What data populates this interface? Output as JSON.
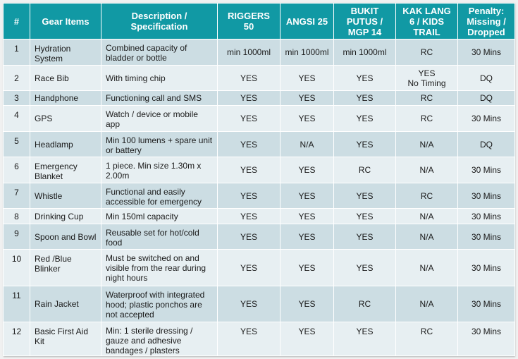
{
  "table": {
    "headers": [
      "#",
      "Gear Items",
      "Description / Specification",
      "RIGGERS 50",
      "ANGSI 25",
      "BUKIT PUTUS / MGP 14",
      "KAK LANG 6 / KIDS TRAIL",
      "Penalty: Missing / Dropped"
    ],
    "rows": [
      {
        "num": "1",
        "item": "Hydration System",
        "desc": "Combined capacity of bladder or bottle",
        "riggers": "min 1000ml",
        "angsi": "min 1000ml",
        "bukit": "min 1000ml",
        "kaklang": "RC",
        "kaklang2": "",
        "penalty": "30 Mins"
      },
      {
        "num": "2",
        "item": "Race Bib",
        "desc": "With timing chip",
        "riggers": "YES",
        "angsi": "YES",
        "bukit": "YES",
        "kaklang": "YES",
        "kaklang2": "No Timing",
        "penalty": "DQ"
      },
      {
        "num": "3",
        "item": "Handphone",
        "desc": "Functioning call and SMS",
        "riggers": "YES",
        "angsi": "YES",
        "bukit": "YES",
        "kaklang": "RC",
        "kaklang2": "",
        "penalty": "DQ"
      },
      {
        "num": "4",
        "item": "GPS",
        "desc": "Watch / device or mobile app",
        "riggers": "YES",
        "angsi": "YES",
        "bukit": "YES",
        "kaklang": "RC",
        "kaklang2": "",
        "penalty": "30 Mins"
      },
      {
        "num": "5",
        "item": "Headlamp",
        "desc": "Min 100 lumens + spare unit or battery",
        "riggers": "YES",
        "angsi": "N/A",
        "bukit": "YES",
        "kaklang": "N/A",
        "kaklang2": "",
        "penalty": "DQ"
      },
      {
        "num": "6",
        "item": "Emergency Blanket",
        "desc": "1 piece. Min size 1.30m x 2.00m",
        "riggers": "YES",
        "angsi": "YES",
        "bukit": "RC",
        "kaklang": "N/A",
        "kaklang2": "",
        "penalty": "30 Mins"
      },
      {
        "num": "7",
        "item": "Whistle",
        "desc": "Functional and easily accessible for emergency",
        "riggers": "YES",
        "angsi": "YES",
        "bukit": "YES",
        "kaklang": "RC",
        "kaklang2": "",
        "penalty": "30 Mins"
      },
      {
        "num": "8",
        "item": "Drinking Cup",
        "desc": "Min 150ml capacity",
        "riggers": "YES",
        "angsi": "YES",
        "bukit": "YES",
        "kaklang": "N/A",
        "kaklang2": "",
        "penalty": "30 Mins"
      },
      {
        "num": "9",
        "item": "Spoon and Bowl",
        "desc": "Reusable set for hot/cold food",
        "riggers": "YES",
        "angsi": "YES",
        "bukit": "YES",
        "kaklang": "N/A",
        "kaklang2": "",
        "penalty": "30 Mins"
      },
      {
        "num": "10",
        "item": "Red /Blue Blinker",
        "desc": "Must be switched on and visible from the rear during night hours",
        "riggers": "YES",
        "angsi": "YES",
        "bukit": "YES",
        "kaklang": "N/A",
        "kaklang2": "",
        "penalty": "30 Mins"
      },
      {
        "num": "11",
        "item": "Rain Jacket",
        "desc": "Waterproof with integrated hood; plastic ponchos are not accepted",
        "riggers": "YES",
        "angsi": "YES",
        "bukit": "RC",
        "kaklang": "N/A",
        "kaklang2": "",
        "penalty": "30 Mins"
      },
      {
        "num": "12",
        "item": "Basic First Aid Kit",
        "desc": "Min: 1 sterile dressing / gauze and adhesive bandages / plasters",
        "riggers": "YES",
        "angsi": "YES",
        "bukit": "YES",
        "kaklang": "RC",
        "kaklang2": "",
        "penalty": "30 Mins"
      }
    ]
  },
  "colors": {
    "header_bg": "#1199a4",
    "row_dark": "#ccdde3",
    "row_light": "#e7eff2"
  }
}
